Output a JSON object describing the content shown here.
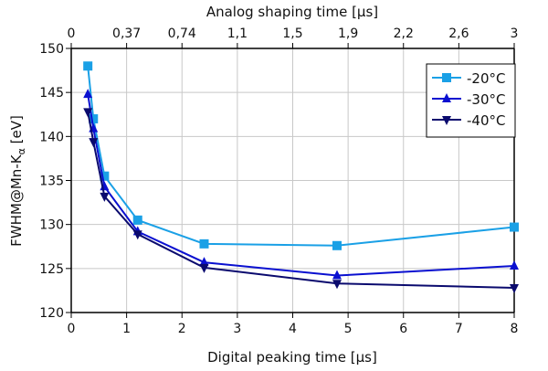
{
  "chart_data": {
    "type": "line",
    "title": "",
    "xlabel": "Digital peaking time [µs]",
    "x2label": "Analog shaping time  [µs]",
    "ylabel": "FWHM@Mn-Kα [eV]",
    "ylabel_parts": {
      "main": "FWHM@Mn-K",
      "sub": "α",
      "tail": " [eV]"
    },
    "xlim": [
      0,
      8
    ],
    "ylim": [
      120,
      150
    ],
    "x_ticks": [
      0,
      1,
      2,
      3,
      4,
      5,
      6,
      7,
      8
    ],
    "x_tick_labels": [
      "0",
      "1",
      "2",
      "3",
      "4",
      "5",
      "6",
      "7",
      "8"
    ],
    "y_ticks": [
      120,
      125,
      130,
      135,
      140,
      145,
      150
    ],
    "y_tick_labels": [
      "120",
      "125",
      "130",
      "135",
      "140",
      "145",
      "150"
    ],
    "x2_ticks": [
      0,
      1,
      2,
      3,
      4,
      5,
      6,
      7,
      8
    ],
    "x2_tick_labels": [
      "0",
      "0,37",
      "0,74",
      "1,1",
      "1,5",
      "1,9",
      "2,2",
      "2,6",
      "3"
    ],
    "grid": true,
    "legend_position": "top-right",
    "x": [
      0.3,
      0.4,
      0.6,
      1.2,
      2.4,
      4.8,
      8.0
    ],
    "series": [
      {
        "name": "-20°C",
        "marker": "square",
        "color": "#1aa0e6",
        "values": [
          148.0,
          142.0,
          135.5,
          130.5,
          127.8,
          127.6,
          129.7
        ]
      },
      {
        "name": "-30°C",
        "marker": "triangle-up",
        "color": "#0a10d0",
        "values": [
          144.8,
          140.9,
          134.3,
          129.2,
          125.7,
          124.2,
          125.3
        ]
      },
      {
        "name": "-40°C",
        "marker": "triangle-down",
        "color": "#0a0a6e",
        "values": [
          142.8,
          139.4,
          133.2,
          128.9,
          125.1,
          123.3,
          122.8
        ]
      }
    ]
  }
}
